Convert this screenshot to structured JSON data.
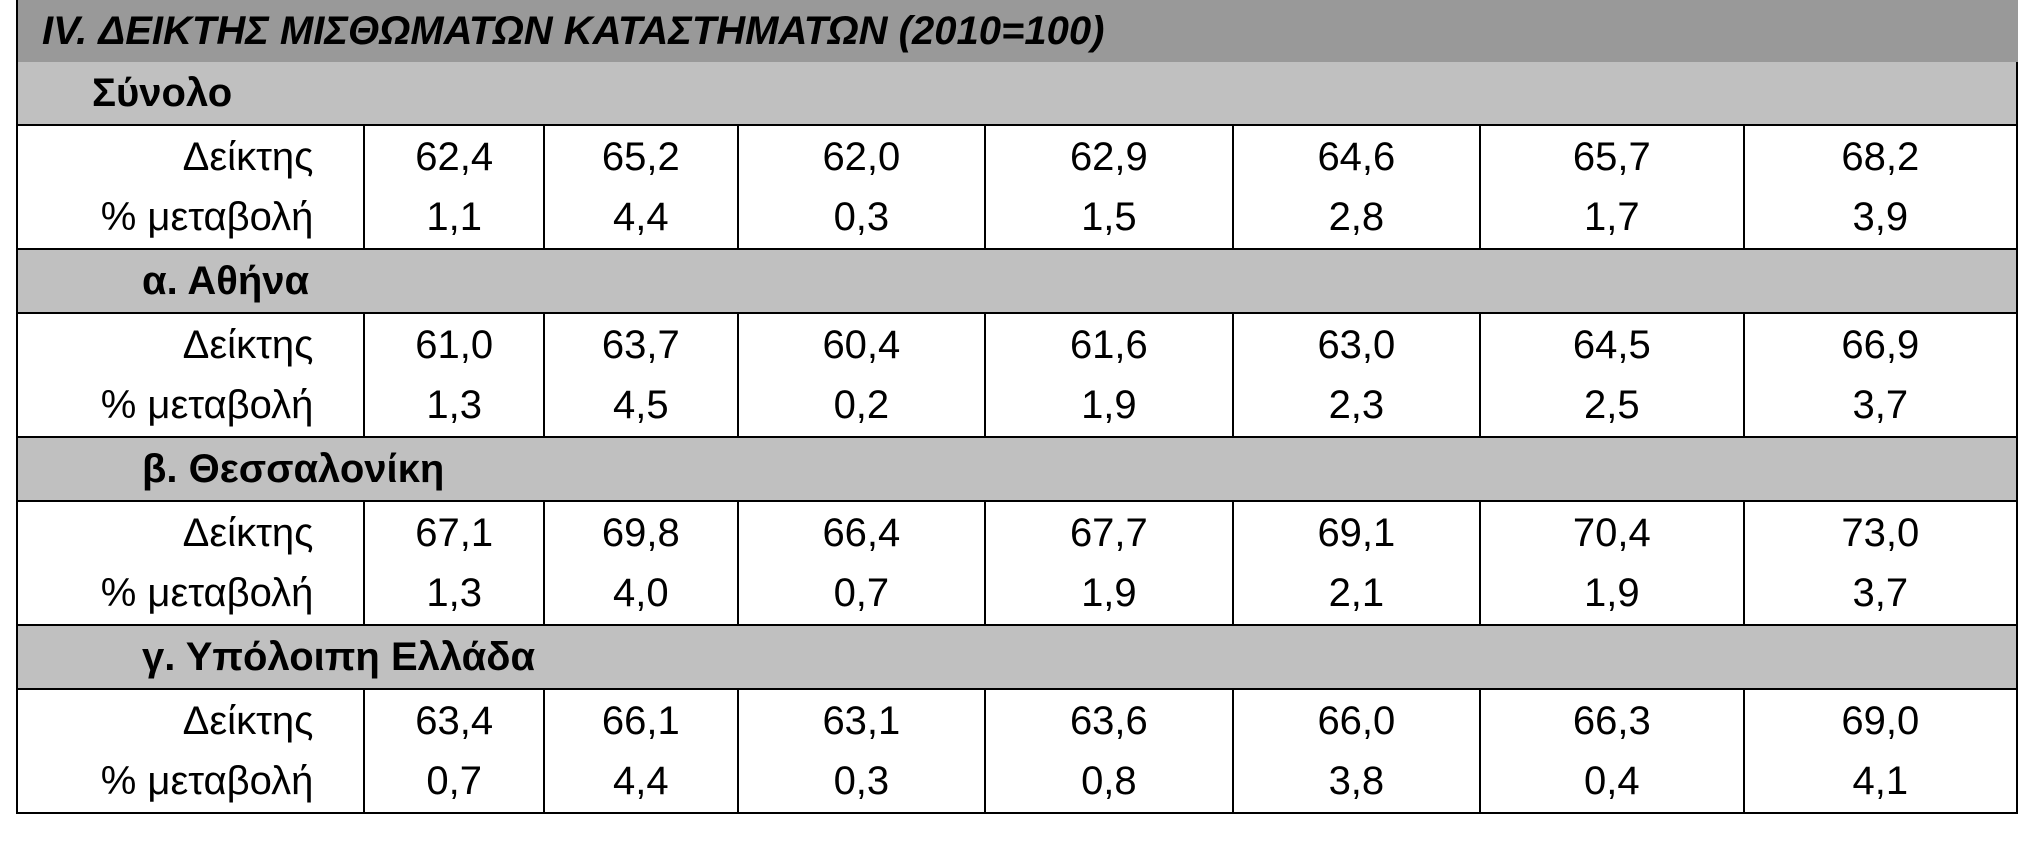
{
  "title": "IV. ΔΕΙΚΤΗΣ ΜΙΣΘΩΜΑΤΩΝ ΚΑΤΑΣΤΗΜΑΤΩΝ (2010=100)",
  "row_labels": {
    "index": "Δείκτης",
    "change": "% μεταβολή"
  },
  "sections": [
    {
      "label": "Σύνολο",
      "index": [
        "62,4",
        "65,2",
        "62,0",
        "62,9",
        "64,6",
        "65,7",
        "68,2"
      ],
      "change": [
        "1,1",
        "4,4",
        "0,3",
        "1,5",
        "2,8",
        "1,7",
        "3,9"
      ]
    },
    {
      "label": "α.  Αθήνα",
      "index": [
        "61,0",
        "63,7",
        "60,4",
        "61,6",
        "63,0",
        "64,5",
        "66,9"
      ],
      "change": [
        "1,3",
        "4,5",
        "0,2",
        "1,9",
        "2,3",
        "2,5",
        "3,7"
      ]
    },
    {
      "label": "β.  Θεσσαλονίκη",
      "index": [
        "67,1",
        "69,8",
        "66,4",
        "67,7",
        "69,1",
        "70,4",
        "73,0"
      ],
      "change": [
        "1,3",
        "4,0",
        "0,7",
        "1,9",
        "2,1",
        "1,9",
        "3,7"
      ]
    },
    {
      "label": "γ. Υπόλοιπη Ελλάδα",
      "index": [
        "63,4",
        "66,1",
        "63,1",
        "63,6",
        "66,0",
        "66,3",
        "69,0"
      ],
      "change": [
        "0,7",
        "4,4",
        "0,3",
        "0,8",
        "3,8",
        "0,4",
        "4,1"
      ]
    }
  ]
}
